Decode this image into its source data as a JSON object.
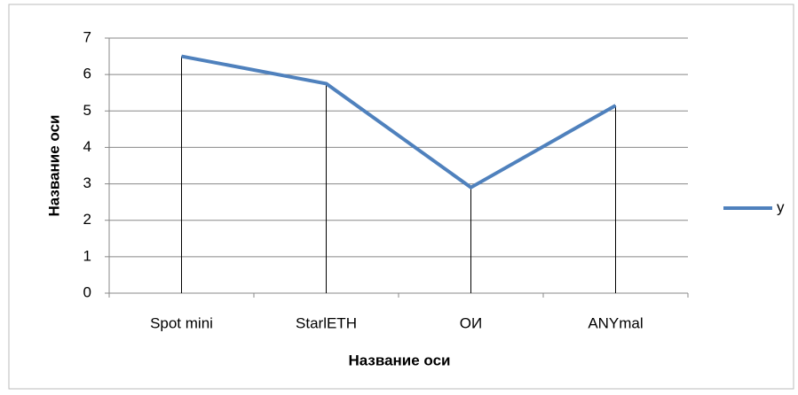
{
  "chart_data": {
    "type": "line",
    "x_label": "Название оси",
    "y_label": "Название оси",
    "categories": [
      "Spot mini",
      "StarlETH",
      "ОИ",
      "ANYmal"
    ],
    "series": [
      {
        "name": "y",
        "color": "#4f81bd",
        "values": [
          6.5,
          5.75,
          2.9,
          5.15
        ]
      }
    ],
    "ylim": [
      0,
      7
    ],
    "yticks": [
      0,
      1,
      2,
      3,
      4,
      5,
      6,
      7
    ],
    "grid": true,
    "drop_lines": true,
    "legend": "right"
  }
}
